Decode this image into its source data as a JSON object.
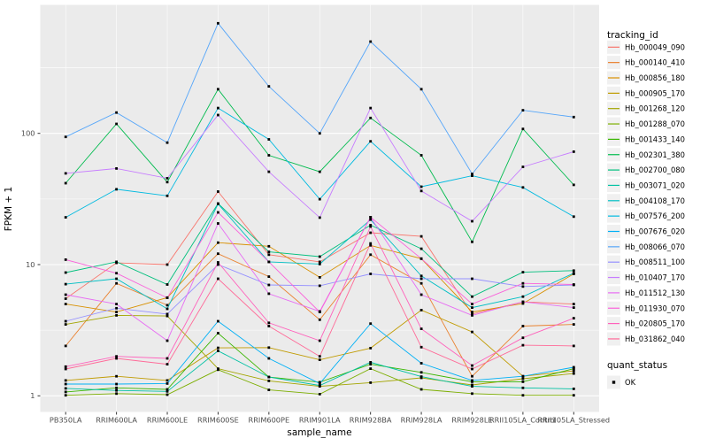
{
  "figure": {
    "ylabel": "FPKM + 1",
    "xlabel": "sample_name"
  },
  "legend": {
    "tracking_title": "tracking_id",
    "quant_title": "quant_status",
    "quant_ok_label": "OK",
    "quant_ok_marker": "black-square"
  },
  "colors": {
    "panel_bg": "#EBEBEB",
    "grid": "#FFFFFF",
    "tick_text": "#4D4D4D",
    "point": "#000000",
    "legend_key_bg": "#F0F0F0"
  },
  "chart_data": {
    "type": "line",
    "title": "",
    "xlabel": "sample_name",
    "ylabel": "FPKM + 1",
    "yscale": "log10",
    "ylim": [
      0.76,
      890
    ],
    "ytick_values": [
      1,
      10,
      100
    ],
    "ytick_minor_values": [
      3.162,
      31.62,
      316.2
    ],
    "grid": true,
    "legend_position": "right",
    "point_marker": "small black square (quant_status = OK) at every data point",
    "categories": [
      "PB350LA",
      "RRIM600LA",
      "RRIM600LE",
      "RRIM600SE",
      "RRIM600PE",
      "RRIM901LA",
      "RRIM928BA",
      "RRIM928LA",
      "RRIM928LE",
      "RRII105LA_Control",
      "RRII105LA_Stressed"
    ],
    "series": [
      {
        "name": "Hb_000049_090",
        "color": "#F8766D",
        "values": [
          5.5,
          10.3,
          10.0,
          36,
          11.9,
          10.5,
          17.5,
          16.4,
          4.2,
          5.2,
          5.0
        ]
      },
      {
        "name": "Hb_000140_410",
        "color": "#EA8331",
        "values": [
          2.4,
          7.2,
          4.9,
          12.1,
          8.1,
          3.8,
          11.9,
          7.2,
          1.41,
          3.4,
          3.5
        ]
      },
      {
        "name": "Hb_000856_180",
        "color": "#D89000",
        "values": [
          5.0,
          4.35,
          5.6,
          14.7,
          13.8,
          8.0,
          14.0,
          11.1,
          4.35,
          5.05,
          8.5
        ]
      },
      {
        "name": "Hb_000905_170",
        "color": "#C09B00",
        "values": [
          1.31,
          1.41,
          1.31,
          2.32,
          2.33,
          1.88,
          2.31,
          4.5,
          3.07,
          1.41,
          1.55
        ]
      },
      {
        "name": "Hb_001268_120",
        "color": "#A3A500",
        "values": [
          3.5,
          4.1,
          4.06,
          1.61,
          1.3,
          1.18,
          1.26,
          1.37,
          1.21,
          1.35,
          1.48
        ]
      },
      {
        "name": "Hb_001288_070",
        "color": "#7CAE00",
        "values": [
          1.01,
          1.04,
          1.02,
          1.58,
          1.11,
          1.03,
          1.61,
          1.12,
          1.04,
          1.01,
          1.01
        ]
      },
      {
        "name": "Hb_001433_140",
        "color": "#39B600",
        "values": [
          1.07,
          1.15,
          1.12,
          3.0,
          1.39,
          1.27,
          1.74,
          1.51,
          1.28,
          1.28,
          1.61
        ]
      },
      {
        "name": "Hb_002301_380",
        "color": "#00BB4E",
        "values": [
          41.7,
          118,
          42.5,
          217,
          68,
          51,
          131,
          68,
          14.9,
          108,
          40.5
        ]
      },
      {
        "name": "Hb_002700_080",
        "color": "#00BF7D",
        "values": [
          8.7,
          10.5,
          7.05,
          29.2,
          12.5,
          11.5,
          20.0,
          13.2,
          5.7,
          8.75,
          9.0
        ]
      },
      {
        "name": "Hb_003071_020",
        "color": "#00C1A3",
        "values": [
          1.14,
          1.1,
          1.08,
          2.2,
          1.39,
          1.2,
          1.8,
          1.4,
          1.18,
          1.15,
          1.13
        ]
      },
      {
        "name": "Hb_004108_170",
        "color": "#00BFC4",
        "values": [
          7.1,
          7.8,
          4.6,
          29.0,
          10.5,
          10.1,
          22.0,
          8.2,
          4.7,
          5.7,
          8.6
        ]
      },
      {
        "name": "Hb_007576_200",
        "color": "#00BAE0",
        "values": [
          22.9,
          37.5,
          33.4,
          156,
          90,
          31.5,
          87,
          39.2,
          47.5,
          38.7,
          23.2
        ]
      },
      {
        "name": "Hb_007676_020",
        "color": "#00B0F6",
        "values": [
          1.23,
          1.23,
          1.24,
          3.7,
          1.93,
          1.24,
          3.55,
          1.77,
          1.31,
          1.41,
          1.65
        ]
      },
      {
        "name": "Hb_008066_070",
        "color": "#56A6F9",
        "values": [
          94,
          144,
          85,
          690,
          228,
          100,
          500,
          217,
          49,
          150,
          133
        ]
      },
      {
        "name": "Hb_008511_100",
        "color": "#9590FF",
        "values": [
          3.7,
          4.65,
          4.2,
          10.0,
          7.0,
          6.9,
          8.5,
          7.8,
          7.8,
          6.8,
          7.0
        ]
      },
      {
        "name": "Hb_010407_170",
        "color": "#C77CFF",
        "values": [
          49.6,
          54,
          45.5,
          138,
          51,
          22.8,
          156,
          36.4,
          21.4,
          55.5,
          72.5
        ]
      },
      {
        "name": "Hb_011512_130",
        "color": "#E76BF3",
        "values": [
          5.9,
          5.0,
          2.63,
          20.6,
          6.0,
          4.4,
          23.0,
          5.9,
          4.1,
          5.2,
          4.7
        ]
      },
      {
        "name": "Hb_011930_070",
        "color": "#FA62DB",
        "values": [
          10.9,
          8.6,
          5.58,
          25,
          10.5,
          4.35,
          23.0,
          11.1,
          5.0,
          7.2,
          7.05
        ]
      },
      {
        "name": "Hb_020805_170",
        "color": "#FF62BC",
        "values": [
          1.67,
          2.0,
          1.93,
          10.4,
          3.6,
          2.63,
          19.5,
          3.24,
          1.7,
          2.77,
          3.9
        ]
      },
      {
        "name": "Hb_031862_040",
        "color": "#FF6A98",
        "values": [
          1.6,
          1.93,
          1.74,
          7.8,
          3.4,
          2.0,
          14.5,
          2.35,
          1.6,
          2.43,
          2.4
        ]
      }
    ]
  }
}
